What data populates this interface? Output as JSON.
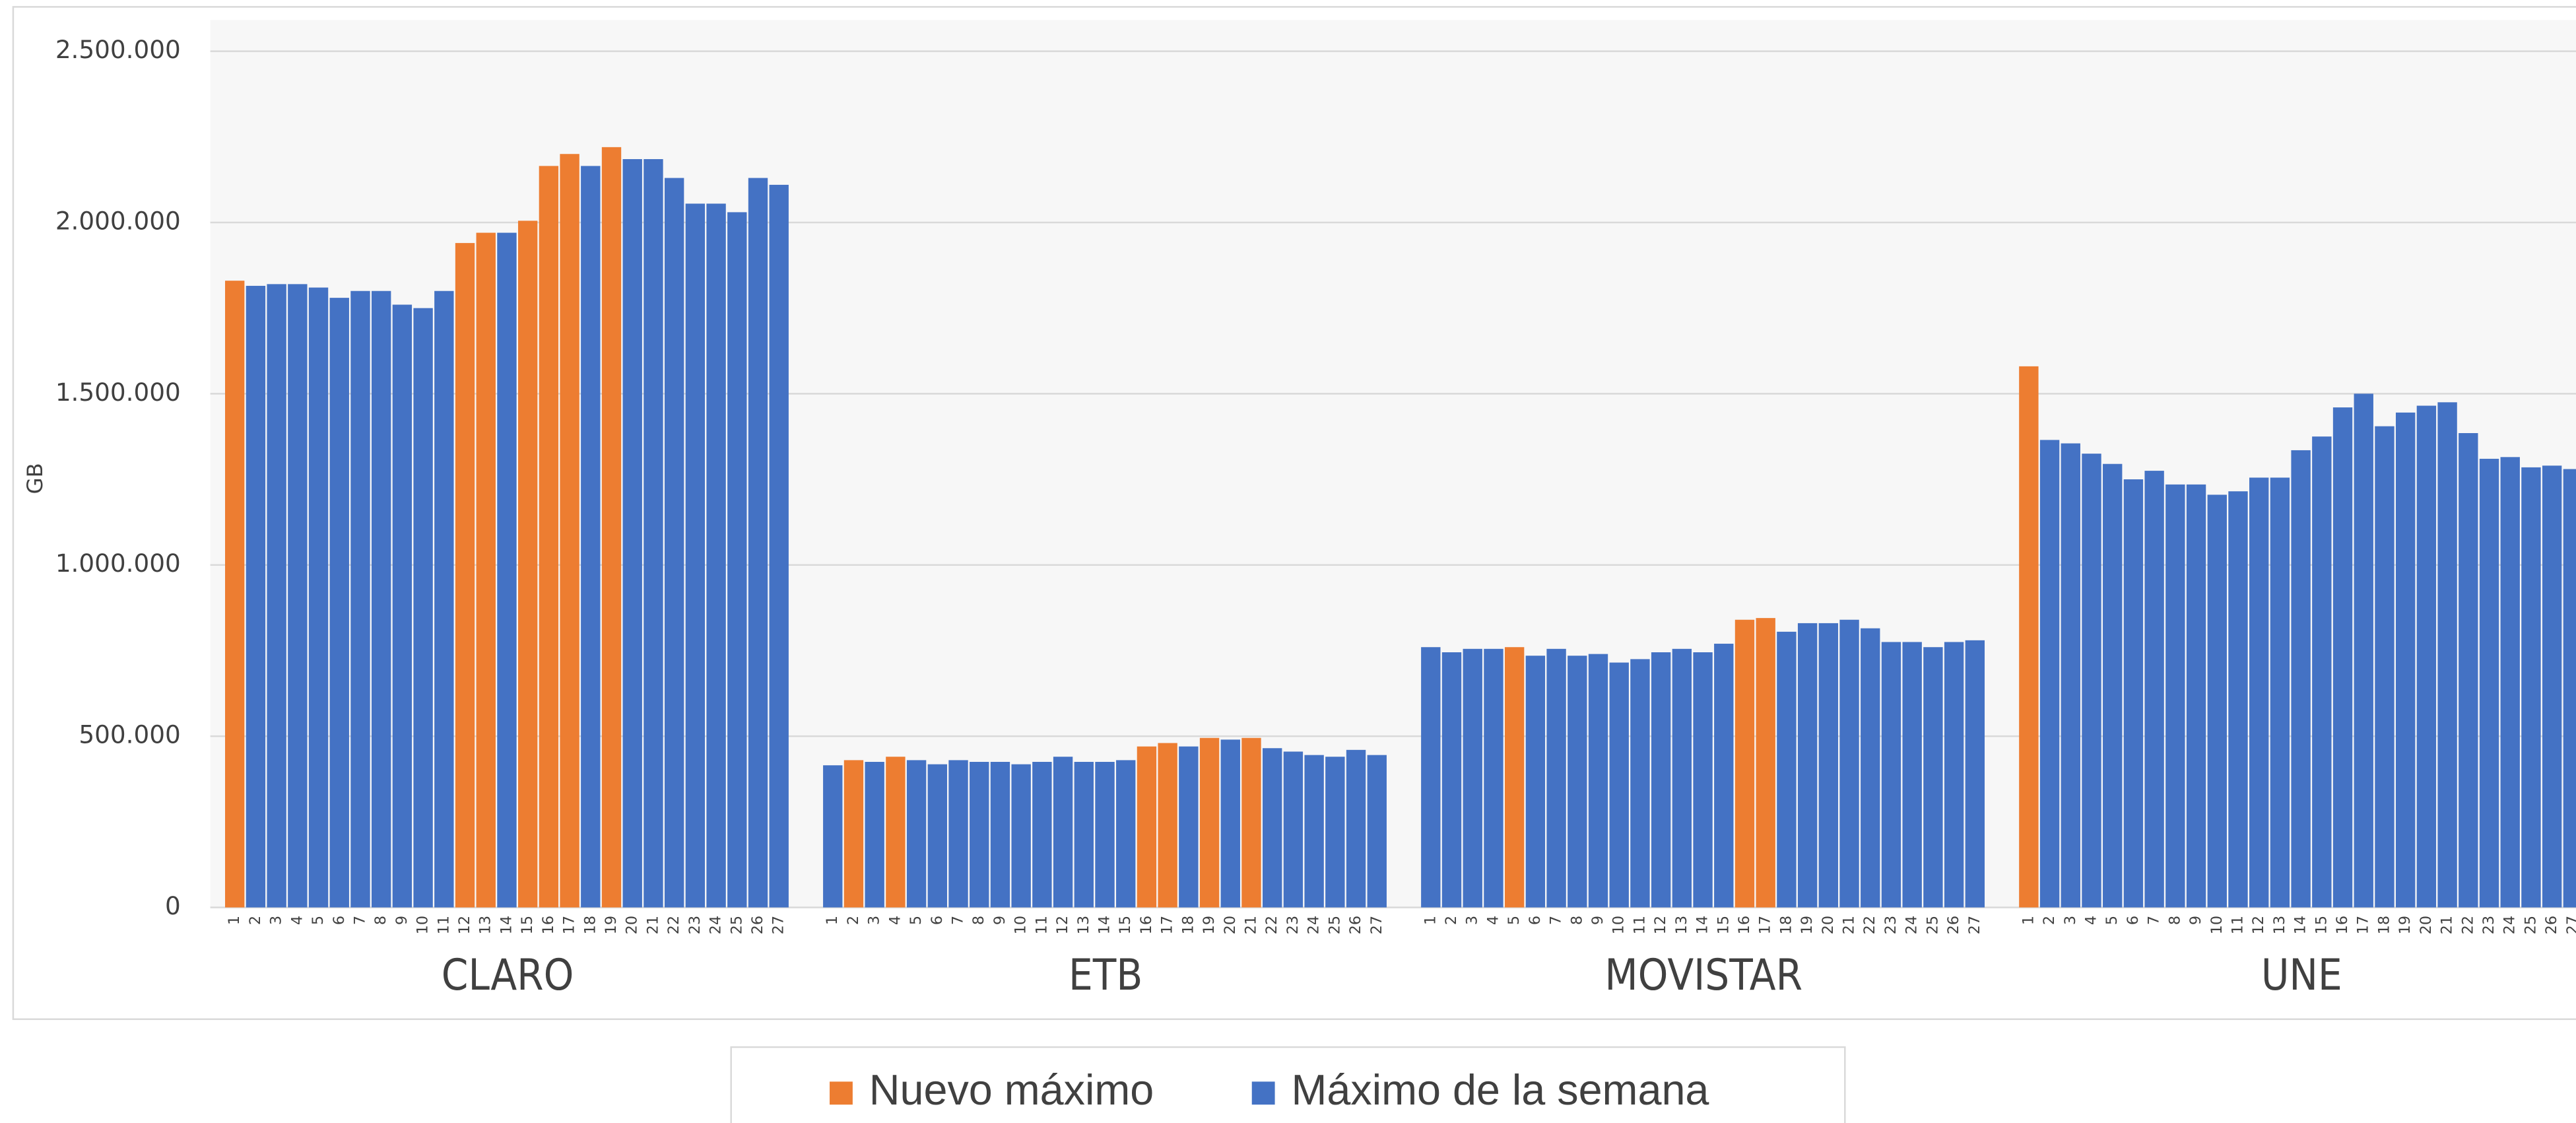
{
  "chart_data": {
    "type": "bar",
    "ylabel": "GB",
    "ylim": [
      0,
      2500000
    ],
    "yticks": [
      0,
      {
        "value": 500000,
        "label": "500.000"
      },
      {
        "value": 1000000,
        "label": "1.000.000"
      },
      {
        "value": 1500000,
        "label": "1.500.000"
      },
      {
        "value": 2000000,
        "label": "2.000.000"
      },
      {
        "value": 2500000,
        "label": "2.500.000"
      }
    ],
    "grid": true,
    "categories": [
      "1",
      "2",
      "3",
      "4",
      "5",
      "6",
      "7",
      "8",
      "9",
      "10",
      "11",
      "12",
      "13",
      "14",
      "15",
      "16",
      "17",
      "18",
      "19",
      "20",
      "21",
      "22",
      "23",
      "24",
      "25",
      "26",
      "27"
    ],
    "legend": [
      {
        "name": "Nuevo máximo",
        "color": "#ed7d31"
      },
      {
        "name": "Máximo de la semana",
        "color": "#4472c4"
      }
    ],
    "groups": [
      {
        "name": "CLARO",
        "series": [
          {
            "values": [
              1830000,
              null,
              null,
              null,
              null,
              null,
              null,
              null,
              null,
              null,
              null,
              1940000,
              1970000,
              null,
              2005000,
              2165000,
              2200000,
              null,
              2220000,
              null,
              null,
              null,
              null,
              null,
              null,
              null,
              null
            ]
          },
          {
            "values": [
              null,
              1815000,
              1820000,
              1820000,
              1810000,
              1780000,
              1800000,
              1800000,
              1760000,
              1750000,
              1800000,
              null,
              null,
              1970000,
              null,
              null,
              null,
              2165000,
              null,
              2185000,
              2185000,
              2130000,
              2055000,
              2055000,
              2030000,
              2130000,
              2110000
            ]
          }
        ]
      },
      {
        "name": "ETB",
        "series": [
          {
            "values": [
              null,
              430000,
              null,
              440000,
              null,
              null,
              null,
              null,
              null,
              null,
              null,
              null,
              null,
              null,
              null,
              470000,
              480000,
              null,
              495000,
              null,
              495000,
              null,
              null,
              null,
              null,
              null,
              null
            ]
          },
          {
            "values": [
              415000,
              null,
              425000,
              null,
              430000,
              418000,
              430000,
              425000,
              425000,
              418000,
              425000,
              440000,
              425000,
              425000,
              430000,
              null,
              null,
              470000,
              null,
              490000,
              null,
              465000,
              455000,
              445000,
              440000,
              460000,
              445000
            ]
          }
        ]
      },
      {
        "name": "MOVISTAR",
        "series": [
          {
            "values": [
              null,
              null,
              null,
              null,
              760000,
              null,
              null,
              null,
              null,
              null,
              null,
              null,
              null,
              null,
              null,
              840000,
              845000,
              null,
              null,
              null,
              null,
              null,
              null,
              null,
              null,
              null,
              null
            ]
          },
          {
            "values": [
              760000,
              745000,
              755000,
              755000,
              null,
              735000,
              755000,
              735000,
              740000,
              715000,
              725000,
              745000,
              755000,
              745000,
              770000,
              null,
              null,
              805000,
              830000,
              830000,
              840000,
              815000,
              775000,
              775000,
              760000,
              775000,
              780000
            ]
          }
        ]
      },
      {
        "name": "UNE",
        "series": [
          {
            "values": [
              1580000,
              null,
              null,
              null,
              null,
              null,
              null,
              null,
              null,
              null,
              null,
              null,
              null,
              null,
              null,
              null,
              null,
              null,
              null,
              null,
              null,
              null,
              null,
              null,
              null,
              null,
              null
            ]
          },
          {
            "values": [
              null,
              1365000,
              1355000,
              1325000,
              1295000,
              1250000,
              1275000,
              1235000,
              1235000,
              1205000,
              1215000,
              1255000,
              1255000,
              1335000,
              1375000,
              1460000,
              1500000,
              1405000,
              1445000,
              1465000,
              1475000,
              1385000,
              1310000,
              1315000,
              1285000,
              1290000,
              1280000
            ]
          }
        ]
      }
    ]
  }
}
